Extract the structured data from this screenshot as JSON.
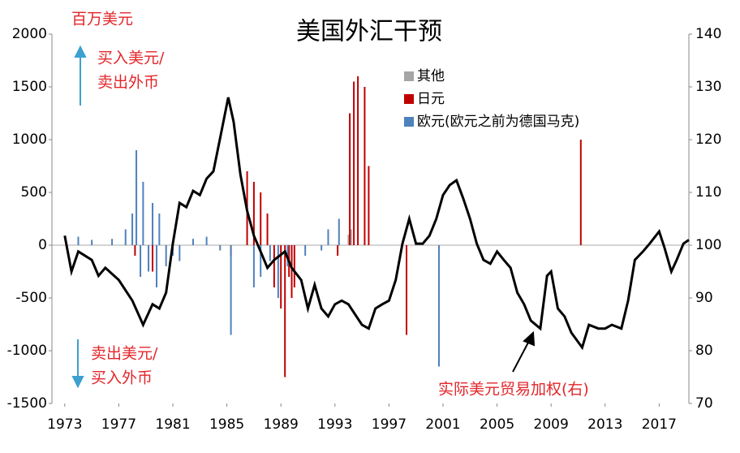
{
  "chart_data": {
    "type": "bar_line",
    "title": "美国外汇干预",
    "ylabel": "百万美元",
    "annotations": [
      "买入美元/",
      "卖出外币",
      "卖出美元/",
      "买入外币",
      "实际美元贸易加权(右)"
    ],
    "xlim": [
      1972.05,
      2019.2
    ],
    "xticks": [
      1973,
      1977,
      1981,
      1985,
      1989,
      1993,
      1997,
      2001,
      2005,
      2009,
      2013,
      2017
    ],
    "ylim": [
      -1500,
      2000
    ],
    "yticks": [
      -1500,
      -1000,
      -500,
      0,
      500,
      1000,
      1500,
      2000
    ],
    "y2lim": [
      70,
      140
    ],
    "y2ticks": [
      70,
      80,
      90,
      100,
      110,
      120,
      130,
      140
    ],
    "series": [
      {
        "name": "其他",
        "color": "#a6a6a6",
        "x": [
          1994.0,
          1994.2
        ],
        "values": [
          100,
          150
        ]
      },
      {
        "name": "日元",
        "color": "#c00000",
        "x": [
          1978.2,
          1979.5,
          1985.3,
          1986.5,
          1987.0,
          1987.5,
          1988.0,
          1988.5,
          1989.0,
          1989.3,
          1989.6,
          1989.8,
          1990.0,
          1993.2,
          1994.1,
          1994.4,
          1994.7,
          1995.2,
          1995.5,
          1998.3,
          2011.2
        ],
        "values": [
          -100,
          -250,
          -100,
          700,
          600,
          500,
          300,
          -400,
          -600,
          -1250,
          -300,
          -500,
          -400,
          -100,
          1250,
          1550,
          1600,
          1500,
          750,
          -850,
          1000
        ]
      },
      {
        "name": "欧元(欧元之前为德国马克)",
        "color": "#4f81bd",
        "x": [
          1974.0,
          1975.0,
          1976.5,
          1977.5,
          1978.0,
          1978.3,
          1978.6,
          1978.8,
          1979.2,
          1979.5,
          1979.8,
          1980.0,
          1980.5,
          1981.0,
          1981.5,
          1982.5,
          1983.5,
          1984.5,
          1985.3,
          1987.0,
          1987.5,
          1988.2,
          1988.8,
          1989.5,
          1990.8,
          1992.0,
          1992.5,
          1993.3,
          2000.7
        ],
        "values": [
          80,
          50,
          60,
          150,
          300,
          900,
          -300,
          600,
          -250,
          400,
          -400,
          300,
          -200,
          -100,
          -150,
          60,
          80,
          -50,
          -850,
          -400,
          -300,
          -150,
          -500,
          -200,
          -100,
          -50,
          150,
          250,
          -1150
        ]
      },
      {
        "name": "实际美元贸易加权(右)",
        "color": "#000000",
        "axis": "y2",
        "type": "line",
        "x": [
          1973.0,
          1973.5,
          1974.0,
          1975.0,
          1975.5,
          1976.0,
          1977.0,
          1978.0,
          1978.8,
          1979.5,
          1980.0,
          1980.5,
          1981.0,
          1981.5,
          1982.0,
          1982.5,
          1983.0,
          1983.5,
          1984.0,
          1984.5,
          1985.1,
          1985.5,
          1986.0,
          1986.5,
          1987.0,
          1987.5,
          1988.0,
          1988.5,
          1989.3,
          1989.8,
          1990.5,
          1991.0,
          1991.5,
          1992.0,
          1992.5,
          1993.0,
          1993.5,
          1994.0,
          1995.0,
          1995.5,
          1996.0,
          1996.5,
          1997.0,
          1997.5,
          1998.0,
          1998.5,
          1999.0,
          1999.5,
          2000.0,
          2000.5,
          2001.0,
          2001.5,
          2002.0,
          2002.5,
          2003.0,
          2003.5,
          2004.0,
          2004.5,
          2005.0,
          2005.5,
          2006.0,
          2006.5,
          2007.0,
          2007.5,
          2008.2,
          2008.7,
          2009.0,
          2009.5,
          2010.0,
          2010.5,
          2011.3,
          2011.8,
          2012.5,
          2013.0,
          2013.5,
          2014.2,
          2014.7,
          2015.2,
          2015.8,
          2016.3,
          2017.0,
          2017.4,
          2017.9,
          2018.3,
          2018.8,
          2019.2
        ],
        "values": [
          101.8,
          95,
          98.8,
          97.2,
          94.2,
          95.7,
          93.4,
          89.5,
          84.9,
          88.8,
          88,
          91,
          100.3,
          108,
          107.2,
          110.3,
          109.5,
          112.6,
          114,
          120.3,
          128,
          123.4,
          113.4,
          106.5,
          101.8,
          98.8,
          95.7,
          97.2,
          98.8,
          95.7,
          93.4,
          88,
          92.5,
          88,
          86.5,
          88.8,
          89.5,
          88.8,
          84.9,
          84.2,
          88,
          88.8,
          89.5,
          93.4,
          100.3,
          105,
          100.3,
          100.3,
          101.8,
          105,
          109.5,
          111.4,
          112.3,
          108.8,
          105,
          100.3,
          97.2,
          96.5,
          98.8,
          97.2,
          95.7,
          91,
          88.8,
          85.7,
          84.2,
          94.2,
          95,
          88,
          86.5,
          83.4,
          80.6,
          84.9,
          84.2,
          84.2,
          84.9,
          84.2,
          89.5,
          97.2,
          98.8,
          100.3,
          102.6,
          99.5,
          95,
          97.2,
          100.3,
          101
        ]
      }
    ]
  }
}
